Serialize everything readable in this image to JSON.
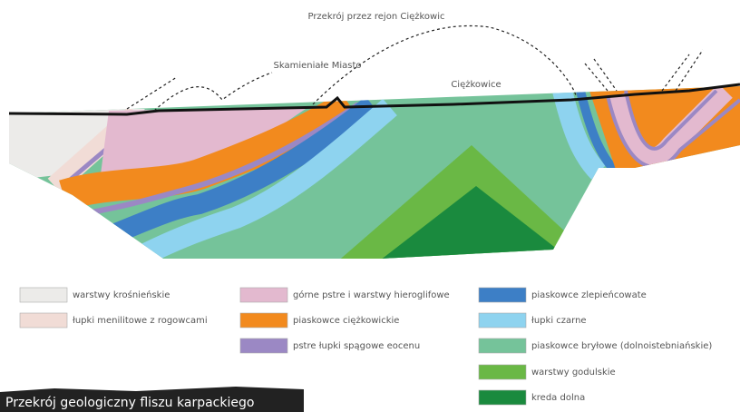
{
  "header": {
    "title": "Przekrój przez rejon Ciężkowic"
  },
  "section": {
    "labels": [
      "Skamieniałe Miasto",
      "Ciężkowice"
    ]
  },
  "legend": {
    "items": [
      {
        "label": "warstwy krośnieńskie",
        "color": "#ecebe9"
      },
      {
        "label": "łupki menilitowe z rogowcami",
        "color": "#f1dcd6"
      },
      {
        "label": "górne pstre i warstwy hieroglifowe",
        "color": "#e3b9cf"
      },
      {
        "label": "piaskowce ciężkowickie",
        "color": "#f28a1e"
      },
      {
        "label": "pstre łupki spągowe eocenu",
        "color": "#9b88c4"
      },
      {
        "label": "piaskowce zlepieńcowate",
        "color": "#3d7fc6"
      },
      {
        "label": "łupki czarne",
        "color": "#8ed3ef"
      },
      {
        "label": "piaskowce bryłowe (dolnoistebniańskie)",
        "color": "#75c39a"
      },
      {
        "label": "warstwy godulskie",
        "color": "#6ab845"
      },
      {
        "label": "kreda dolna",
        "color": "#1a8a3e"
      }
    ]
  },
  "caption": {
    "text": "Przekrój geologiczny fliszu karpackiego"
  }
}
